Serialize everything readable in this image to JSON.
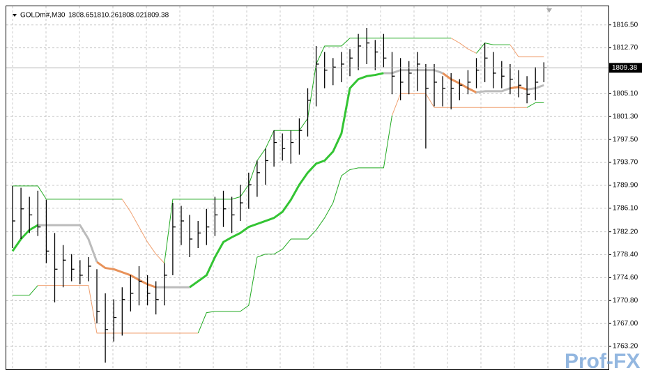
{
  "chart_data": {
    "type": "ohlc",
    "symbol": "GOLDm#,M30",
    "ohlc": [
      1808.65,
      1810.26,
      1808.02,
      1809.38
    ],
    "current_price": 1809.38,
    "watermark": "Prof-FX",
    "ylim": [
      1759.4,
      1819.7
    ],
    "yticks": [
      {
        "value": 1816.5,
        "label": "1816.50"
      },
      {
        "value": 1812.7,
        "label": "1812.70"
      },
      {
        "value": 1805.1,
        "label": "1805.10"
      },
      {
        "value": 1801.3,
        "label": "1801.30"
      },
      {
        "value": 1797.5,
        "label": "1797.50"
      },
      {
        "value": 1793.7,
        "label": "1793.70"
      },
      {
        "value": 1789.9,
        "label": "1789.90"
      },
      {
        "value": 1786.1,
        "label": "1786.10"
      },
      {
        "value": 1782.2,
        "label": "1782.20"
      },
      {
        "value": 1778.4,
        "label": "1778.40"
      },
      {
        "value": 1774.6,
        "label": "1774.60"
      },
      {
        "value": 1770.8,
        "label": "1770.80"
      },
      {
        "value": 1767,
        "label": "1767.00"
      },
      {
        "value": 1763.2,
        "label": "1763.20"
      }
    ],
    "grid": true,
    "bar_color": "#000000",
    "high": [
      1789.8,
      1789.5,
      1788,
      1789,
      1787.5,
      1782,
      1780,
      1778.5,
      1777.5,
      1778,
      1776,
      1772,
      1771,
      1773,
      1775,
      1776.5,
      1775,
      1774,
      1777,
      1787,
      1786.5,
      1785,
      1784,
      1786,
      1788,
      1789,
      1788,
      1790,
      1792,
      1794,
      1796,
      1799,
      1798.5,
      1799,
      1801,
      1806,
      1813,
      1812,
      1811,
      1812,
      1812.5,
      1815,
      1816,
      1814,
      1815,
      1812,
      1811,
      1810.5,
      1812,
      1810,
      1810,
      1808,
      1808.5,
      1807.5,
      1809,
      1811,
      1813.5,
      1812,
      1810.5,
      1810,
      1809,
      1808,
      1809.5,
      1810.3
    ],
    "low": [
      1779.5,
      1781,
      1782,
      1781.5,
      1777,
      1770.5,
      1773,
      1774,
      1773.5,
      1774,
      1767,
      1760.5,
      1764,
      1765,
      1769,
      1770,
      1770,
      1768.5,
      1770,
      1775,
      1780,
      1778,
      1779.5,
      1780,
      1781.5,
      1783,
      1782,
      1784,
      1786,
      1788,
      1790,
      1793,
      1794,
      1793.5,
      1795,
      1798,
      1803,
      1806,
      1806.5,
      1807,
      1808,
      1809,
      1810,
      1809,
      1809.5,
      1805,
      1804,
      1805,
      1805.5,
      1796,
      1803,
      1803,
      1802.5,
      1804,
      1805,
      1806,
      1807,
      1806,
      1806,
      1805,
      1804.5,
      1803.5,
      1804,
      1807
    ],
    "close": [
      1784,
      1786,
      1785,
      1783,
      1779,
      1776,
      1777.5,
      1776,
      1775,
      1776.5,
      1769,
      1766,
      1768,
      1771,
      1772,
      1774,
      1772,
      1771,
      1775,
      1783,
      1784,
      1781,
      1782,
      1783,
      1785,
      1786,
      1785,
      1787,
      1790,
      1792,
      1794,
      1797,
      1796,
      1797,
      1799,
      1804,
      1810,
      1809,
      1809.5,
      1810,
      1811,
      1813,
      1813.5,
      1812,
      1811,
      1808,
      1807,
      1808.5,
      1810,
      1806,
      1807,
      1806,
      1806,
      1806.5,
      1807,
      1809,
      1811,
      1808.5,
      1808,
      1807.5,
      1806.5,
      1805,
      1807,
      1809.38
    ],
    "series": [
      {
        "name": "upper",
        "width": 1,
        "values": [
          1789.8,
          1789.8,
          1789.8,
          1789.8,
          1787.6,
          1787.6,
          1787.6,
          1787.6,
          1787.6,
          1787.6,
          1787.6,
          1787.6,
          1787.6,
          1787.6,
          1785.5,
          1783,
          1780.5,
          1778.5,
          1777,
          1787.6,
          1787.6,
          1787.6,
          1787.6,
          1787.6,
          1787.6,
          1787.6,
          1787.6,
          1788,
          1790,
          1794,
          1796,
          1799,
          1799,
          1799,
          1799,
          1801,
          1810,
          1813,
          1813,
          1813,
          1814.3,
          1814.3,
          1814.3,
          1814.3,
          1814.3,
          1814.3,
          1814.3,
          1814.3,
          1814.3,
          1814.3,
          1814.3,
          1814.3,
          1814.3,
          1813.5,
          1812.5,
          1811.8,
          1813.5,
          1813.2,
          1813.2,
          1813.2,
          1811.2,
          1811.2,
          1811.2,
          1811.2
        ],
        "colors": [
          "#22aa22",
          "#22aa22",
          "#22aa22",
          "#22aa22",
          "#22aa22",
          "#22aa22",
          "#22aa22",
          "#22aa22",
          "#22aa22",
          "#22aa22",
          "#22aa22",
          "#22aa22",
          "#22aa22",
          "#22aa22",
          "#f0a070",
          "#f0a070",
          "#f0a070",
          "#f0a070",
          "#f0a070",
          "#22aa22",
          "#22aa22",
          "#22aa22",
          "#22aa22",
          "#22aa22",
          "#22aa22",
          "#22aa22",
          "#22aa22",
          "#22aa22",
          "#22aa22",
          "#22aa22",
          "#22aa22",
          "#22aa22",
          "#22aa22",
          "#22aa22",
          "#22aa22",
          "#22aa22",
          "#22aa22",
          "#22aa22",
          "#22aa22",
          "#22aa22",
          "#22aa22",
          "#22aa22",
          "#22aa22",
          "#22aa22",
          "#22aa22",
          "#22aa22",
          "#22aa22",
          "#22aa22",
          "#22aa22",
          "#22aa22",
          "#22aa22",
          "#22aa22",
          "#22aa22",
          "#f0a070",
          "#f0a070",
          "#f0a070",
          "#22aa22",
          "#22aa22",
          "#22aa22",
          "#22aa22",
          "#f0a070",
          "#f0a070",
          "#f0a070",
          "#f0a070"
        ]
      },
      {
        "name": "lower",
        "width": 1,
        "values": [
          1771.7,
          1771.7,
          1771.7,
          1773.3,
          1773.3,
          1773.3,
          1773.3,
          1773.3,
          1773.3,
          1773.3,
          1765.4,
          1765.4,
          1765.4,
          1765.4,
          1765.4,
          1765.4,
          1765.4,
          1765.4,
          1765.4,
          1765.4,
          1765.4,
          1765.4,
          1765.4,
          1768.8,
          1769,
          1769,
          1769,
          1769,
          1770,
          1778,
          1778.5,
          1778.5,
          1779.3,
          1781,
          1781,
          1781,
          1782.5,
          1784.5,
          1787,
          1791.5,
          1792.5,
          1792.8,
          1792.8,
          1792.8,
          1792.8,
          1801.5,
          1805.1,
          1805.1,
          1805.1,
          1805.1,
          1802.8,
          1802.8,
          1802.8,
          1802.8,
          1802.8,
          1802.8,
          1802.8,
          1802.8,
          1802.8,
          1802.8,
          1802.8,
          1802.8,
          1803.6,
          1803.6
        ],
        "colors": [
          "#22aa22",
          "#22aa22",
          "#22aa22",
          "#22aa22",
          "#f0a070",
          "#f0a070",
          "#f0a070",
          "#f0a070",
          "#f0a070",
          "#f0a070",
          "#f0a070",
          "#f0a070",
          "#f0a070",
          "#f0a070",
          "#f0a070",
          "#f0a070",
          "#f0a070",
          "#f0a070",
          "#f0a070",
          "#f0a070",
          "#f0a070",
          "#f0a070",
          "#f0a070",
          "#22aa22",
          "#22aa22",
          "#22aa22",
          "#22aa22",
          "#22aa22",
          "#22aa22",
          "#22aa22",
          "#22aa22",
          "#22aa22",
          "#22aa22",
          "#22aa22",
          "#22aa22",
          "#22aa22",
          "#22aa22",
          "#22aa22",
          "#22aa22",
          "#22aa22",
          "#22aa22",
          "#22aa22",
          "#22aa22",
          "#22aa22",
          "#22aa22",
          "#22aa22",
          "#f0a070",
          "#f0a070",
          "#f0a070",
          "#f0a070",
          "#f0a070",
          "#f0a070",
          "#f0a070",
          "#f0a070",
          "#f0a070",
          "#f0a070",
          "#f0a070",
          "#f0a070",
          "#f0a070",
          "#f0a070",
          "#f0a070",
          "#f0a070",
          "#22aa22",
          "#22aa22"
        ]
      },
      {
        "name": "middle",
        "width": 3,
        "values": [
          1779,
          1781,
          1782.5,
          1783.3,
          1783.3,
          1783.3,
          1783.3,
          1783.3,
          1783.3,
          1781,
          1777.2,
          1776.2,
          1776,
          1775.5,
          1775,
          1774.2,
          1773.5,
          1773,
          1773,
          1773,
          1773,
          1773,
          1774,
          1775,
          1778,
          1780.5,
          1781.3,
          1782,
          1783,
          1783.5,
          1784,
          1784.5,
          1785.5,
          1787.5,
          1790,
          1792,
          1793.5,
          1794,
          1795.5,
          1798.5,
          1806,
          1807.5,
          1808,
          1808.2,
          1808.5,
          1808.5,
          1809,
          1809,
          1809,
          1809,
          1809,
          1808.5,
          1807.5,
          1806.8,
          1806,
          1805.3,
          1805.5,
          1805.5,
          1805.5,
          1806,
          1806.2,
          1805.8,
          1806,
          1806.5
        ],
        "colors": [
          "#33c433",
          "#33c433",
          "#33c433",
          "#33c433",
          "#bbbbbb",
          "#bbbbbb",
          "#bbbbbb",
          "#bbbbbb",
          "#bbbbbb",
          "#bbbbbb",
          "#bbbbbb",
          "#e8925a",
          "#e8925a",
          "#e8925a",
          "#e8925a",
          "#e8925a",
          "#e8925a",
          "#e8925a",
          "#bbbbbb",
          "#bbbbbb",
          "#bbbbbb",
          "#bbbbbb",
          "#33c433",
          "#33c433",
          "#33c433",
          "#33c433",
          "#33c433",
          "#33c433",
          "#33c433",
          "#33c433",
          "#33c433",
          "#33c433",
          "#33c433",
          "#33c433",
          "#33c433",
          "#33c433",
          "#33c433",
          "#33c433",
          "#33c433",
          "#33c433",
          "#33c433",
          "#33c433",
          "#33c433",
          "#33c433",
          "#33c433",
          "#bbbbbb",
          "#bbbbbb",
          "#bbbbbb",
          "#bbbbbb",
          "#bbbbbb",
          "#bbbbbb",
          "#bbbbbb",
          "#e8925a",
          "#e8925a",
          "#e8925a",
          "#e8925a",
          "#bbbbbb",
          "#bbbbbb",
          "#bbbbbb",
          "#bbbbbb",
          "#e8925a",
          "#e8925a",
          "#bbbbbb",
          "#bbbbbb"
        ]
      }
    ]
  }
}
